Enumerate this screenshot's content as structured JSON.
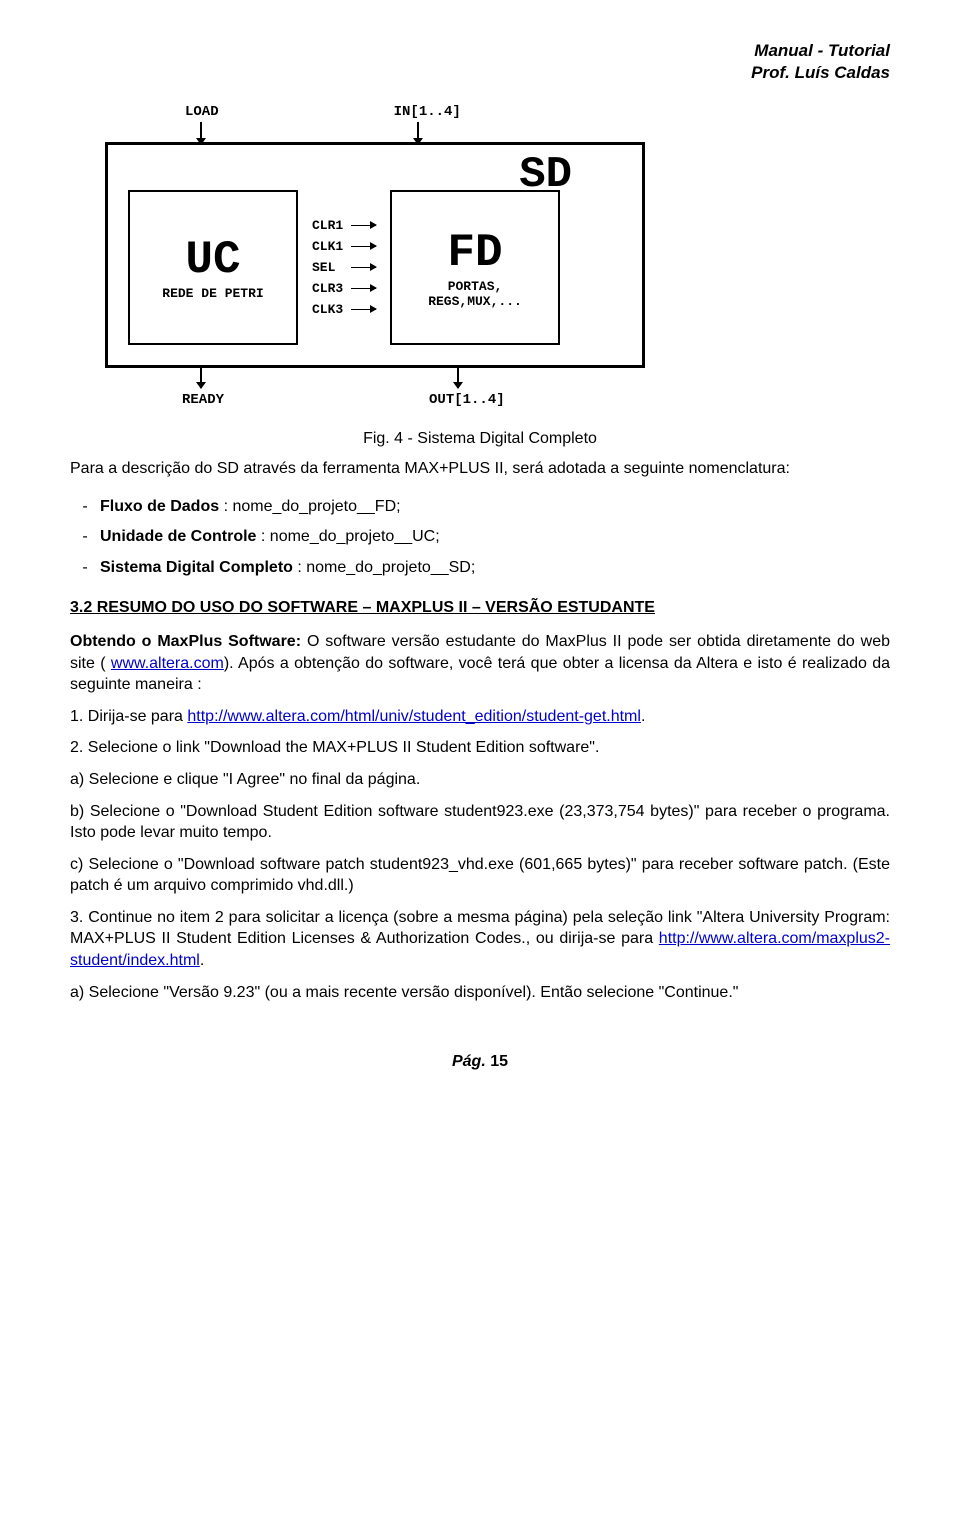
{
  "header": {
    "line1": "Manual - Tutorial",
    "line2": "Prof. Luís Caldas"
  },
  "diagram": {
    "inputs": {
      "load": "LOAD",
      "in": "IN[1..4]"
    },
    "outer_label": "SD",
    "uc": {
      "big": "UC",
      "small": "REDE DE PETRI"
    },
    "fd": {
      "big": "FD",
      "small": "PORTAS,\nREGS,MUX,..."
    },
    "signals": [
      "CLR1",
      "CLK1",
      "SEL",
      "CLR3",
      "CLK3"
    ],
    "outputs": {
      "ready": "READY",
      "out": "OUT[1..4]"
    },
    "colors": {
      "border": "#000000",
      "text": "#000000",
      "background": "#ffffff"
    }
  },
  "caption": "Fig. 4 - Sistema Digital Completo",
  "intro": "Para a descrição do SD através da ferramenta MAX+PLUS II, será adotada a seguinte nomenclatura:",
  "bullets": [
    {
      "label": "Fluxo de Dados",
      "value": " : nome_do_projeto__FD;"
    },
    {
      "label": "Unidade de Controle",
      "value": " : nome_do_projeto__UC;"
    },
    {
      "label": "Sistema Digital Completo",
      "value": " : nome_do_projeto__SD;"
    }
  ],
  "section_heading": "3.2 RESUMO DO USO DO SOFTWARE – MAXPLUS II – VERSÃO ESTUDANTE",
  "p_obtendo_pre": "Obtendo o MaxPlus Software:",
  "p_obtendo": " O software versão estudante do MaxPlus II pode ser obtida diretamente do web site ( ",
  "link_altera": "www.altera.com",
  "p_obtendo_post": "). Após a obtenção do software, você terá que obter a licensa da Altera e isto é realizado da seguinte maneira :",
  "step1_pre": "1. Dirija-se para ",
  "step1_link": "http://www.altera.com/html/univ/student_edition/student-get.html",
  "step1_post": ".",
  "step2": "2. Selecione o link \"Download the MAX+PLUS II Student Edition software\".",
  "step2a": "a) Selecione  e clique \"I Agree\" no final da página.",
  "step2b": "b) Selecione o \"Download Student Edition software student923.exe (23,373,754 bytes)\" para receber o programa. Isto pode levar muito tempo.",
  "step2c": "c) Selecione o \"Download software patch student923_vhd.exe (601,665 bytes)\" para receber software patch. (Este patch é um arquivo comprimido  vhd.dll.)",
  "step3_pre": "3. Continue no item 2 para solicitar a licença (sobre a mesma página) pela seleção link \"Altera University Program: MAX+PLUS II Student Edition Licenses & Authorization Codes., ou dirija-se para ",
  "step3_link": "http://www.altera.com/maxplus2-student/index.html",
  "step3_post": ".",
  "step3a": "a) Selecione \"Versão 9.23\" (ou a mais recente versão disponível). Então selecione \"Continue.\"",
  "footer_prefix": "Pág.",
  "footer_num": "15"
}
